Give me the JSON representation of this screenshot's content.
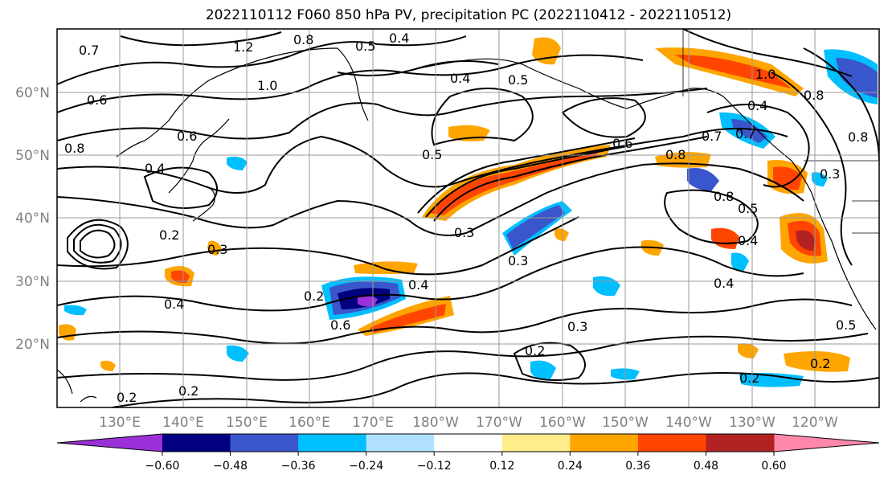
{
  "title": "2022110112 F060 850 hPa PV, precipitation PC (2022110412 - 2022110512)",
  "lat_labels": [
    "60°N",
    "50°N",
    "40°N",
    "30°N",
    "20°N"
  ],
  "lon_labels": [
    "130°E",
    "140°E",
    "150°E",
    "160°E",
    "170°E",
    "180°W",
    "170°W",
    "160°W",
    "150°W",
    "140°W",
    "130°W",
    "120°W"
  ],
  "colorbar": {
    "colors": [
      "#9b30d9",
      "#000080",
      "#3a56cc",
      "#00bfff",
      "#b0e2ff",
      "#ffffff",
      "#ffec8b",
      "#ffa500",
      "#ff4500",
      "#b22222",
      "#ff88aa"
    ],
    "tick_labels": [
      "−0.60",
      "−0.48",
      "−0.36",
      "−0.24",
      "−0.12",
      "0.12",
      "0.24",
      "0.36",
      "0.48",
      "0.60"
    ]
  },
  "contour_labels": [
    "0.7",
    "1.2",
    "0.8",
    "0.5",
    "0.4",
    "0.6",
    "1.0",
    "0.4",
    "0.5",
    "0.6",
    "0.8",
    "0.5",
    "0.4",
    "0.2",
    "0.3",
    "0.3",
    "0.8",
    "0.7",
    "0.4",
    "1.0",
    "0.8",
    "0.6",
    "0.7",
    "0.8",
    "0.3",
    "0.8",
    "0.5",
    "0.4",
    "0.3",
    "0.4",
    "0.2",
    "0.4",
    "0.6",
    "0.3",
    "0.2",
    "0.5",
    "0.2",
    "0.2",
    "0.4",
    "0.2",
    "0.2"
  ]
}
